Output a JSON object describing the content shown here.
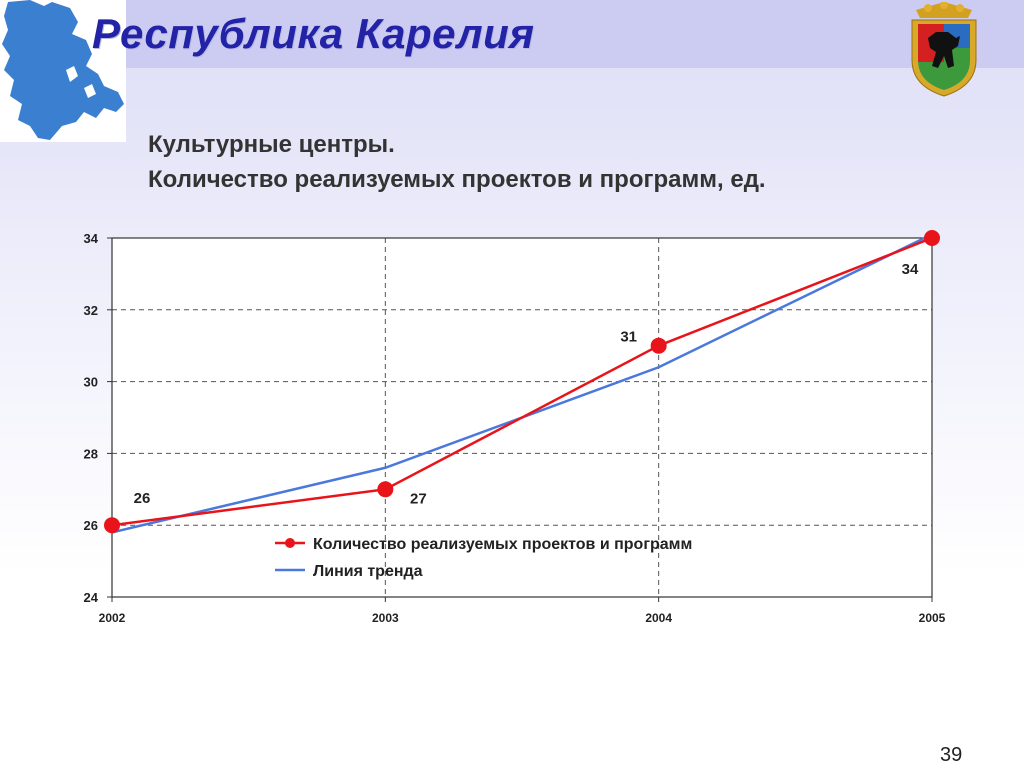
{
  "slide": {
    "title": "Республика Карелия",
    "subtitle_line1": "Культурные центры.",
    "subtitle_line2": "Количество реализуемых проектов и программ, ед.",
    "page_number": "39",
    "coat_of_arms_icon": "karelia-coat-of-arms-icon",
    "map_icon": "karelia-map-icon"
  },
  "colors": {
    "title": "#2323a8",
    "series": "#e8141a",
    "trend": "#4a78dc",
    "map": "#3a7fd0"
  },
  "chart_data": {
    "type": "line",
    "x": [
      "2002",
      "2003",
      "2004",
      "2005"
    ],
    "ylim": [
      24,
      34
    ],
    "yticks": [
      "24",
      "26",
      "28",
      "30",
      "32",
      "34"
    ],
    "grid": true,
    "legend_position": "bottom-center",
    "series": [
      {
        "name": "Количество реализуемых проектов и программ",
        "values": [
          26,
          27,
          31,
          34
        ],
        "labels": [
          "26",
          "27",
          "31",
          "34"
        ],
        "color": "#e8141a"
      },
      {
        "name": "Линия тренда",
        "values": [
          25.8,
          27.6,
          30.4,
          34.1
        ],
        "color": "#4a78dc"
      }
    ]
  }
}
